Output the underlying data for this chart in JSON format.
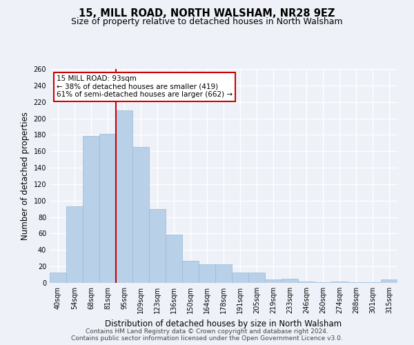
{
  "title": "15, MILL ROAD, NORTH WALSHAM, NR28 9EZ",
  "subtitle": "Size of property relative to detached houses in North Walsham",
  "xlabel": "Distribution of detached houses by size in North Walsham",
  "ylabel": "Number of detached properties",
  "categories": [
    "40sqm",
    "54sqm",
    "68sqm",
    "81sqm",
    "95sqm",
    "109sqm",
    "123sqm",
    "136sqm",
    "150sqm",
    "164sqm",
    "178sqm",
    "191sqm",
    "205sqm",
    "219sqm",
    "233sqm",
    "246sqm",
    "260sqm",
    "274sqm",
    "288sqm",
    "301sqm",
    "315sqm"
  ],
  "values": [
    13,
    93,
    179,
    181,
    210,
    165,
    90,
    59,
    27,
    23,
    23,
    13,
    13,
    4,
    5,
    2,
    1,
    2,
    1,
    1,
    4
  ],
  "bar_color": "#b8d0e8",
  "bar_edge_color": "#9ab8d4",
  "marker_line_index": 4,
  "marker_line_color": "#cc0000",
  "annotation_line1": "15 MILL ROAD: 93sqm",
  "annotation_line2": "← 38% of detached houses are smaller (419)",
  "annotation_line3": "61% of semi-detached houses are larger (662) →",
  "annotation_box_color": "#ffffff",
  "annotation_box_edge_color": "#cc0000",
  "ylim": [
    0,
    260
  ],
  "yticks": [
    0,
    20,
    40,
    60,
    80,
    100,
    120,
    140,
    160,
    180,
    200,
    220,
    240,
    260
  ],
  "footer1": "Contains HM Land Registry data © Crown copyright and database right 2024.",
  "footer2": "Contains public sector information licensed under the Open Government Licence v3.0.",
  "bg_color": "#eef2f8",
  "title_fontsize": 10.5,
  "subtitle_fontsize": 9,
  "axis_label_fontsize": 8.5,
  "tick_fontsize": 7,
  "annotation_fontsize": 7.5,
  "footer_fontsize": 6.5
}
